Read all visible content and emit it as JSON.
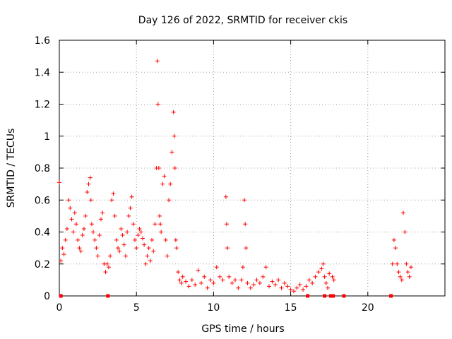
{
  "chart_data": {
    "type": "scatter",
    "title": "Day 126 of 2022, SRMTID for receiver ckis",
    "xlabel": "GPS time / hours",
    "ylabel": "SRMTID / TECUs",
    "xlim": [
      0,
      25
    ],
    "ylim": [
      0,
      1.6
    ],
    "x_ticks": [
      0,
      5,
      10,
      15,
      20
    ],
    "y_ticks": [
      0,
      0.2,
      0.4,
      0.6,
      0.8,
      1.0,
      1.2,
      1.4,
      1.6
    ],
    "x_tick_labels": [
      "0",
      "5",
      "10",
      "15",
      "20"
    ],
    "y_tick_labels": [
      "0",
      "0.2",
      "0.4",
      "0.6",
      "0.8",
      "1",
      "1.2",
      "1.4",
      "1.6"
    ],
    "grid": true,
    "legend": "none",
    "marker": "plus",
    "color": "#ff0000",
    "series": [
      {
        "name": "SRMTID",
        "x": [
          0.0,
          0.1,
          0.2,
          0.3,
          0.4,
          0.5,
          0.6,
          0.7,
          0.8,
          0.9,
          1.0,
          1.1,
          1.2,
          1.3,
          1.4,
          1.5,
          1.6,
          1.7,
          1.8,
          1.9,
          2.0,
          2.05,
          2.1,
          2.2,
          2.3,
          2.4,
          2.5,
          2.6,
          2.7,
          2.8,
          2.9,
          3.0,
          3.1,
          3.2,
          3.3,
          3.4,
          3.5,
          3.6,
          3.7,
          3.8,
          3.9,
          4.0,
          4.1,
          4.2,
          4.3,
          4.4,
          4.5,
          4.6,
          4.7,
          4.8,
          4.9,
          5.0,
          5.1,
          5.2,
          5.3,
          5.4,
          5.5,
          5.6,
          5.7,
          5.8,
          5.9,
          6.0,
          6.1,
          6.2,
          6.3,
          6.35,
          6.4,
          6.45,
          6.5,
          6.55,
          6.6,
          6.7,
          6.8,
          6.9,
          7.0,
          7.1,
          7.2,
          7.3,
          7.4,
          7.45,
          7.5,
          7.55,
          7.6,
          7.7,
          7.8,
          7.9,
          8.0,
          8.2,
          8.4,
          8.6,
          8.8,
          9.0,
          9.2,
          9.4,
          9.6,
          9.8,
          10.0,
          10.2,
          10.4,
          10.6,
          10.8,
          10.85,
          10.9,
          11.0,
          11.2,
          11.4,
          11.6,
          11.8,
          11.9,
          12.0,
          12.05,
          12.1,
          12.2,
          12.4,
          12.6,
          12.8,
          13.0,
          13.2,
          13.4,
          13.6,
          13.8,
          14.0,
          14.2,
          14.4,
          14.6,
          14.8,
          15.0,
          15.2,
          15.4,
          15.6,
          15.8,
          16.0,
          16.2,
          16.4,
          16.6,
          16.8,
          17.0,
          17.1,
          17.2,
          17.3,
          17.4,
          17.5,
          17.7,
          17.8,
          21.6,
          21.7,
          21.8,
          21.9,
          22.0,
          22.1,
          22.2,
          22.3,
          22.4,
          22.5,
          22.6,
          22.7,
          22.8
        ],
        "y": [
          0.71,
          0.22,
          0.3,
          0.26,
          0.35,
          0.42,
          0.6,
          0.55,
          0.48,
          0.4,
          0.52,
          0.45,
          0.35,
          0.3,
          0.28,
          0.38,
          0.42,
          0.5,
          0.65,
          0.7,
          0.74,
          0.6,
          0.45,
          0.4,
          0.35,
          0.3,
          0.25,
          0.38,
          0.48,
          0.52,
          0.2,
          0.15,
          0.2,
          0.18,
          0.25,
          0.6,
          0.64,
          0.5,
          0.35,
          0.3,
          0.28,
          0.42,
          0.38,
          0.32,
          0.25,
          0.4,
          0.5,
          0.55,
          0.62,
          0.45,
          0.35,
          0.3,
          0.38,
          0.42,
          0.4,
          0.36,
          0.32,
          0.2,
          0.25,
          0.3,
          0.22,
          0.35,
          0.28,
          0.45,
          0.8,
          1.47,
          1.2,
          0.8,
          0.5,
          0.45,
          0.4,
          0.7,
          0.75,
          0.35,
          0.25,
          0.6,
          0.7,
          0.9,
          1.15,
          1.0,
          0.8,
          0.35,
          0.3,
          0.15,
          0.1,
          0.08,
          0.12,
          0.09,
          0.06,
          0.1,
          0.07,
          0.16,
          0.08,
          0.12,
          0.05,
          0.1,
          0.08,
          0.18,
          0.12,
          0.1,
          0.62,
          0.45,
          0.3,
          0.12,
          0.08,
          0.1,
          0.05,
          0.1,
          0.18,
          0.6,
          0.45,
          0.3,
          0.08,
          0.05,
          0.07,
          0.1,
          0.08,
          0.12,
          0.18,
          0.06,
          0.09,
          0.07,
          0.1,
          0.05,
          0.08,
          0.06,
          0.04,
          0.03,
          0.05,
          0.07,
          0.04,
          0.06,
          0.1,
          0.08,
          0.12,
          0.15,
          0.17,
          0.2,
          0.12,
          0.08,
          0.05,
          0.14,
          0.12,
          0.1,
          0.2,
          0.35,
          0.3,
          0.2,
          0.15,
          0.12,
          0.1,
          0.52,
          0.4,
          0.2,
          0.15,
          0.12,
          0.18
        ],
        "zero_x": [
          0.1,
          3.15,
          16.1,
          17.2,
          17.6,
          17.75,
          18.45,
          21.5
        ]
      }
    ]
  }
}
